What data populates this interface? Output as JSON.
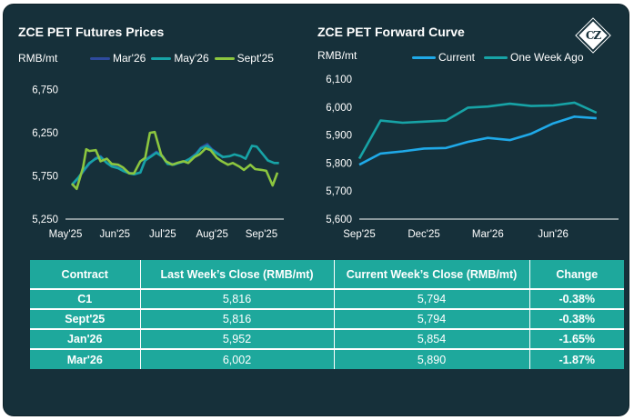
{
  "chart_data": [
    {
      "type": "line",
      "title": "ZCE PET Futures Prices",
      "ylabel": "RMB/mt",
      "ylim": [
        5250,
        7000
      ],
      "yticks": [
        "6,750",
        "6,250",
        "5,750",
        "5,250"
      ],
      "ytick_values": [
        6750,
        6250,
        5750,
        5250
      ],
      "xlim": [
        "2025-05-01",
        "2025-09-15"
      ],
      "xticks": [
        "May'25",
        "Jun'25",
        "Jul'25",
        "Aug'25",
        "Sep'25"
      ],
      "xtick_dates": [
        "2025-05-01",
        "2025-06-01",
        "2025-07-01",
        "2025-08-01",
        "2025-09-01"
      ],
      "legend_position": "top",
      "series": [
        {
          "name": "Mar'26",
          "color": "#2e4a9e",
          "points": [
            [
              "2025-05-05",
              5640
            ],
            [
              "2025-05-09",
              5720
            ],
            [
              "2025-05-13",
              5820
            ],
            [
              "2025-05-16",
              5890
            ],
            [
              "2025-05-20",
              5960
            ],
            [
              "2025-05-23",
              5980
            ],
            [
              "2025-05-27",
              5900
            ],
            [
              "2025-05-30",
              5870
            ],
            [
              "2025-06-03",
              5850
            ],
            [
              "2025-06-06",
              5820
            ],
            [
              "2025-06-10",
              5790
            ],
            [
              "2025-06-13",
              5770
            ],
            [
              "2025-06-17",
              5790
            ],
            [
              "2025-06-20",
              5940
            ],
            [
              "2025-06-24",
              5990
            ],
            [
              "2025-06-27",
              6030
            ],
            [
              "2025-07-01",
              5980
            ],
            [
              "2025-07-04",
              5900
            ],
            [
              "2025-07-08",
              5890
            ],
            [
              "2025-07-11",
              5900
            ],
            [
              "2025-07-15",
              5920
            ],
            [
              "2025-07-18",
              5950
            ],
            [
              "2025-07-22",
              6010
            ],
            [
              "2025-07-25",
              6080
            ],
            [
              "2025-07-29",
              6120
            ],
            [
              "2025-08-01",
              6060
            ],
            [
              "2025-08-05",
              6010
            ],
            [
              "2025-08-08",
              5960
            ]
          ]
        },
        {
          "name": "May'26",
          "color": "#17a3a6",
          "points": [
            [
              "2025-05-05",
              5650
            ],
            [
              "2025-05-09",
              5730
            ],
            [
              "2025-05-13",
              5830
            ],
            [
              "2025-05-16",
              5900
            ],
            [
              "2025-05-20",
              5950
            ],
            [
              "2025-05-23",
              5970
            ],
            [
              "2025-05-27",
              5900
            ],
            [
              "2025-05-30",
              5860
            ],
            [
              "2025-06-03",
              5840
            ],
            [
              "2025-06-06",
              5810
            ],
            [
              "2025-06-10",
              5780
            ],
            [
              "2025-06-13",
              5770
            ],
            [
              "2025-06-17",
              5790
            ],
            [
              "2025-06-20",
              5930
            ],
            [
              "2025-06-24",
              5980
            ],
            [
              "2025-06-27",
              6020
            ],
            [
              "2025-07-01",
              5970
            ],
            [
              "2025-07-04",
              5890
            ],
            [
              "2025-07-08",
              5880
            ],
            [
              "2025-07-11",
              5900
            ],
            [
              "2025-07-15",
              5920
            ],
            [
              "2025-07-18",
              5950
            ],
            [
              "2025-07-22",
              6000
            ],
            [
              "2025-07-25",
              6070
            ],
            [
              "2025-07-29",
              6100
            ],
            [
              "2025-08-01",
              6050
            ],
            [
              "2025-08-05",
              6000
            ],
            [
              "2025-08-08",
              5970
            ],
            [
              "2025-08-12",
              5980
            ],
            [
              "2025-08-15",
              6000
            ],
            [
              "2025-08-19",
              5980
            ],
            [
              "2025-08-22",
              5950
            ],
            [
              "2025-08-26",
              6100
            ],
            [
              "2025-08-29",
              6090
            ],
            [
              "2025-09-02",
              6000
            ],
            [
              "2025-09-05",
              5930
            ],
            [
              "2025-09-09",
              5900
            ],
            [
              "2025-09-12",
              5900
            ]
          ]
        },
        {
          "name": "Sept'25",
          "color": "#8cc63f",
          "points": [
            [
              "2025-05-05",
              5660
            ],
            [
              "2025-05-08",
              5600
            ],
            [
              "2025-05-12",
              5850
            ],
            [
              "2025-05-14",
              6060
            ],
            [
              "2025-05-16",
              6040
            ],
            [
              "2025-05-20",
              6050
            ],
            [
              "2025-05-23",
              5920
            ],
            [
              "2025-05-27",
              5950
            ],
            [
              "2025-05-30",
              5890
            ],
            [
              "2025-06-03",
              5880
            ],
            [
              "2025-06-06",
              5850
            ],
            [
              "2025-06-10",
              5780
            ],
            [
              "2025-06-13",
              5780
            ],
            [
              "2025-06-17",
              5920
            ],
            [
              "2025-06-20",
              5960
            ],
            [
              "2025-06-23",
              6250
            ],
            [
              "2025-06-26",
              6260
            ],
            [
              "2025-06-30",
              6000
            ],
            [
              "2025-07-03",
              5920
            ],
            [
              "2025-07-07",
              5880
            ],
            [
              "2025-07-10",
              5900
            ],
            [
              "2025-07-14",
              5920
            ],
            [
              "2025-07-17",
              5900
            ],
            [
              "2025-07-21",
              5970
            ],
            [
              "2025-07-24",
              6000
            ],
            [
              "2025-07-28",
              6070
            ],
            [
              "2025-07-31",
              6050
            ],
            [
              "2025-08-04",
              5960
            ],
            [
              "2025-08-07",
              5920
            ],
            [
              "2025-08-11",
              5880
            ],
            [
              "2025-08-14",
              5900
            ],
            [
              "2025-08-18",
              5860
            ],
            [
              "2025-08-21",
              5820
            ],
            [
              "2025-08-25",
              5880
            ],
            [
              "2025-08-28",
              5830
            ],
            [
              "2025-09-01",
              5820
            ],
            [
              "2025-09-04",
              5810
            ],
            [
              "2025-09-08",
              5640
            ],
            [
              "2025-09-11",
              5790
            ]
          ]
        }
      ]
    },
    {
      "type": "line",
      "title": "ZCE PET Forward Curve",
      "ylabel": "RMB/mt",
      "ylim": [
        5600,
        6100
      ],
      "yticks": [
        "6,100",
        "6,000",
        "5,900",
        "5,800",
        "5,700",
        "5,600"
      ],
      "ytick_values": [
        6100,
        6000,
        5900,
        5800,
        5700,
        5600
      ],
      "xlim": [
        "2025-09-01",
        "2026-09-01"
      ],
      "xticks": [
        "Sep'25",
        "Dec'25",
        "Mar'26",
        "Jun'26"
      ],
      "xtick_dates": [
        "2025-09-01",
        "2025-12-01",
        "2026-03-01",
        "2026-06-01"
      ],
      "legend_position": "top",
      "series": [
        {
          "name": "Current",
          "color": "#1fa9e8",
          "points": [
            [
              "2025-09-01",
              5794
            ],
            [
              "2025-10-01",
              5834
            ],
            [
              "2025-11-01",
              5842
            ],
            [
              "2025-12-01",
              5852
            ],
            [
              "2026-01-01",
              5854
            ],
            [
              "2026-02-01",
              5876
            ],
            [
              "2026-03-01",
              5890
            ],
            [
              "2026-04-01",
              5882
            ],
            [
              "2026-05-01",
              5905
            ],
            [
              "2026-06-01",
              5942
            ],
            [
              "2026-07-01",
              5966
            ],
            [
              "2026-08-01",
              5960
            ]
          ]
        },
        {
          "name": "One Week Ago",
          "color": "#17a3a6",
          "points": [
            [
              "2025-09-01",
              5816
            ],
            [
              "2025-10-01",
              5952
            ],
            [
              "2025-11-01",
              5944
            ],
            [
              "2025-12-01",
              5948
            ],
            [
              "2026-01-01",
              5952
            ],
            [
              "2026-02-01",
              5998
            ],
            [
              "2026-03-01",
              6002
            ],
            [
              "2026-04-01",
              6012
            ],
            [
              "2026-05-01",
              6004
            ],
            [
              "2026-06-01",
              6006
            ],
            [
              "2026-07-01",
              6016
            ],
            [
              "2026-08-01",
              5980
            ]
          ]
        }
      ]
    }
  ],
  "table": {
    "headers": [
      "Contract",
      "Last Week’s Close (RMB/mt)",
      "Current Week’s Close (RMB/mt)",
      "Change"
    ],
    "rows": [
      [
        "C1",
        "5,816",
        "5,794",
        "-0.38%"
      ],
      [
        "Sept'25",
        "5,816",
        "5,794",
        "-0.38%"
      ],
      [
        "Jan'26",
        "5,952",
        "5,854",
        "-1.65%"
      ],
      [
        "Mar'26",
        "6,002",
        "5,890",
        "-1.87%"
      ]
    ]
  },
  "logo": {
    "text": "CZ"
  },
  "colors": {
    "background": "#16303a",
    "table_fill": "#1ea89c"
  }
}
